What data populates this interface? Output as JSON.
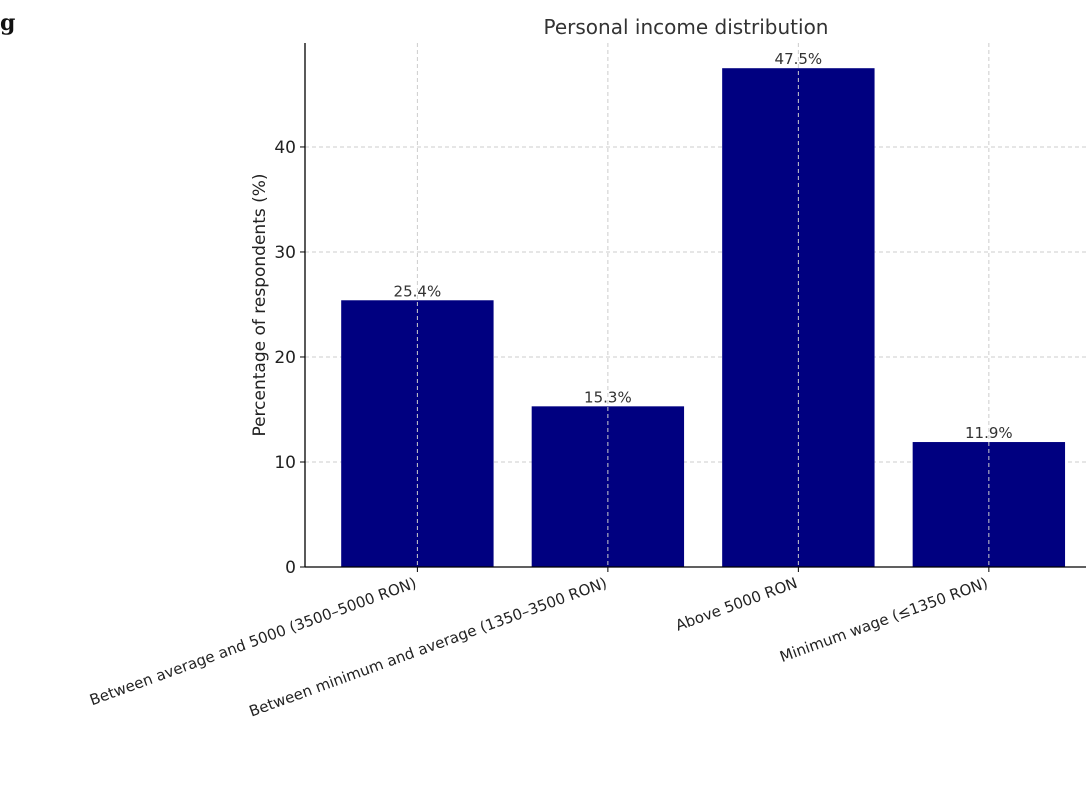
{
  "page": {
    "corner_label": "g"
  },
  "chart_data": {
    "type": "bar",
    "title": "Personal income distribution",
    "xlabel": "",
    "ylabel": "Percentage of respondents (%)",
    "categories": [
      "Between average and 5000 (3500–5000 RON)",
      "Between minimum and average (1350–3500 RON)",
      "Above 5000 RON",
      "Minimum wage (≤1350 RON)"
    ],
    "values": [
      25.4,
      15.3,
      47.5,
      11.9
    ],
    "data_labels": [
      "25.4%",
      "15.3%",
      "47.5%",
      "11.9%"
    ],
    "ylim": [
      0,
      49.9
    ],
    "yticks": [
      0,
      10,
      20,
      30,
      40
    ],
    "grid": true,
    "legend": "none",
    "colors": {
      "bar": "#000080",
      "grid": "#cccccc",
      "axis": "#000000",
      "text": "#222222"
    }
  }
}
